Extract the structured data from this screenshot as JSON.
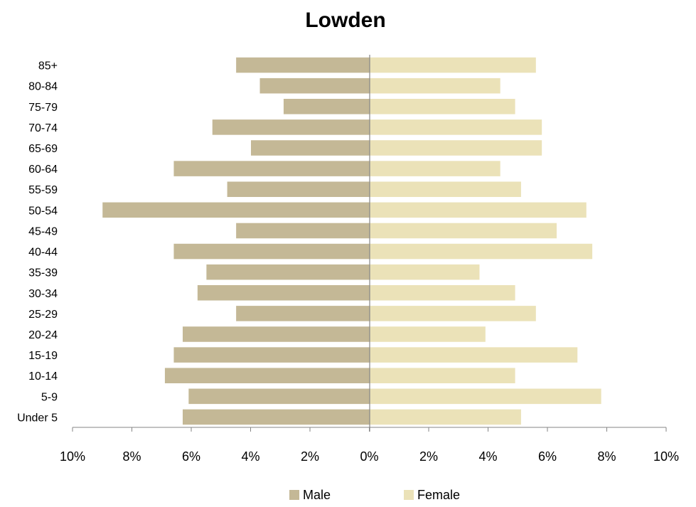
{
  "chart_data": {
    "type": "bar",
    "orientation": "horizontal",
    "title": "Lowden",
    "categories": [
      "Under 5",
      "5-9",
      "10-14",
      "15-19",
      "20-24",
      "25-29",
      "30-34",
      "35-39",
      "40-44",
      "45-49",
      "50-54",
      "55-59",
      "60-64",
      "65-69",
      "70-74",
      "75-79",
      "80-84",
      "85+"
    ],
    "series": [
      {
        "name": "Male",
        "color": "#c4b896",
        "direction": "left",
        "values": [
          6.3,
          6.1,
          6.9,
          6.6,
          6.3,
          4.5,
          5.8,
          5.5,
          6.6,
          4.5,
          9.0,
          4.8,
          6.6,
          4.0,
          5.3,
          2.9,
          3.7,
          4.5
        ]
      },
      {
        "name": "Female",
        "color": "#ebe2b8",
        "direction": "right",
        "values": [
          5.1,
          7.8,
          4.9,
          7.0,
          3.9,
          5.6,
          4.9,
          3.7,
          7.5,
          6.3,
          7.3,
          5.1,
          4.4,
          5.8,
          5.8,
          4.9,
          4.4,
          5.6
        ]
      }
    ],
    "x_ticks": [
      "10%",
      "8%",
      "6%",
      "4%",
      "2%",
      "0%",
      "2%",
      "4%",
      "6%",
      "8%",
      "10%"
    ],
    "xlim": [
      -10,
      10
    ],
    "grid": false,
    "legend_position": "bottom"
  }
}
